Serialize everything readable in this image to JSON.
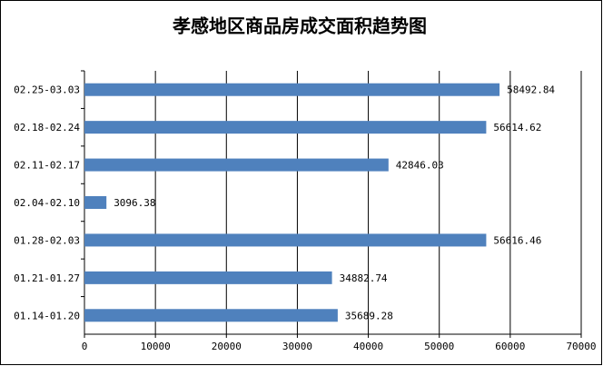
{
  "chart_data": {
    "type": "hbar",
    "title": "孝感地区商品房成交面积趋势图",
    "categories": [
      "02.25-03.03",
      "02.18-02.24",
      "02.11-02.17",
      "02.04-02.10",
      "01.28-02.03",
      "01.21-01.27",
      "01.14-01.20"
    ],
    "values": [
      58492.84,
      56614.62,
      42846.03,
      3096.38,
      56616.46,
      34882.74,
      35689.28
    ],
    "color": "#4f81bd",
    "xlim": [
      0,
      70000
    ],
    "xticks": [
      0,
      10000,
      20000,
      30000,
      40000,
      50000,
      60000,
      70000
    ],
    "grid": true
  }
}
